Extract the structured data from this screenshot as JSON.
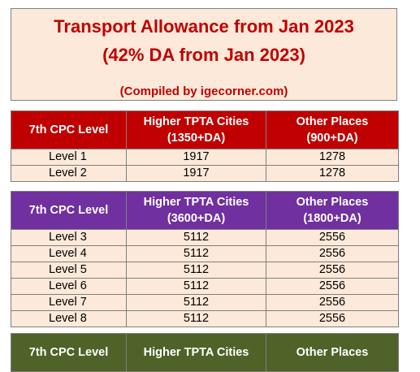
{
  "title": {
    "line1": "Transport Allowance from Jan 2023",
    "line2": "(42% DA from Jan 2023)",
    "credit": "(Compiled by igecorner.com)"
  },
  "tables": [
    {
      "header": {
        "col1": "7th CPC Level",
        "col2_line1": "Higher TPTA Cities",
        "col2_line2": "(1350+DA)",
        "col3_line1": "Other Places",
        "col3_line2": "(900+DA)"
      },
      "rows": [
        {
          "level": "Level 1",
          "higher": "1917",
          "other": "1278"
        },
        {
          "level": "Level 2",
          "higher": "1917",
          "other": "1278"
        }
      ]
    },
    {
      "header": {
        "col1": "7th CPC Level",
        "col2_line1": "Higher TPTA Cities",
        "col2_line2": "(3600+DA)",
        "col3_line1": "Other Places",
        "col3_line2": "(1800+DA)"
      },
      "rows": [
        {
          "level": "Level 3",
          "higher": "5112",
          "other": "2556"
        },
        {
          "level": "Level 4",
          "higher": "5112",
          "other": "2556"
        },
        {
          "level": "Level 5",
          "higher": "5112",
          "other": "2556"
        },
        {
          "level": "Level 6",
          "higher": "5112",
          "other": "2556"
        },
        {
          "level": "Level 7",
          "higher": "5112",
          "other": "2556"
        },
        {
          "level": "Level 8",
          "higher": "5112",
          "other": "2556"
        }
      ]
    },
    {
      "header": {
        "col1": "7th CPC Level",
        "col2_line1": "Higher TPTA Cities",
        "col3_line1": "Other Places"
      }
    }
  ],
  "colors": {
    "table1_header": "#c00000",
    "table2_header": "#7030a0",
    "table3_header": "#4f6228",
    "cell_bg": "#fde9d9",
    "title_text": "#c00000"
  }
}
